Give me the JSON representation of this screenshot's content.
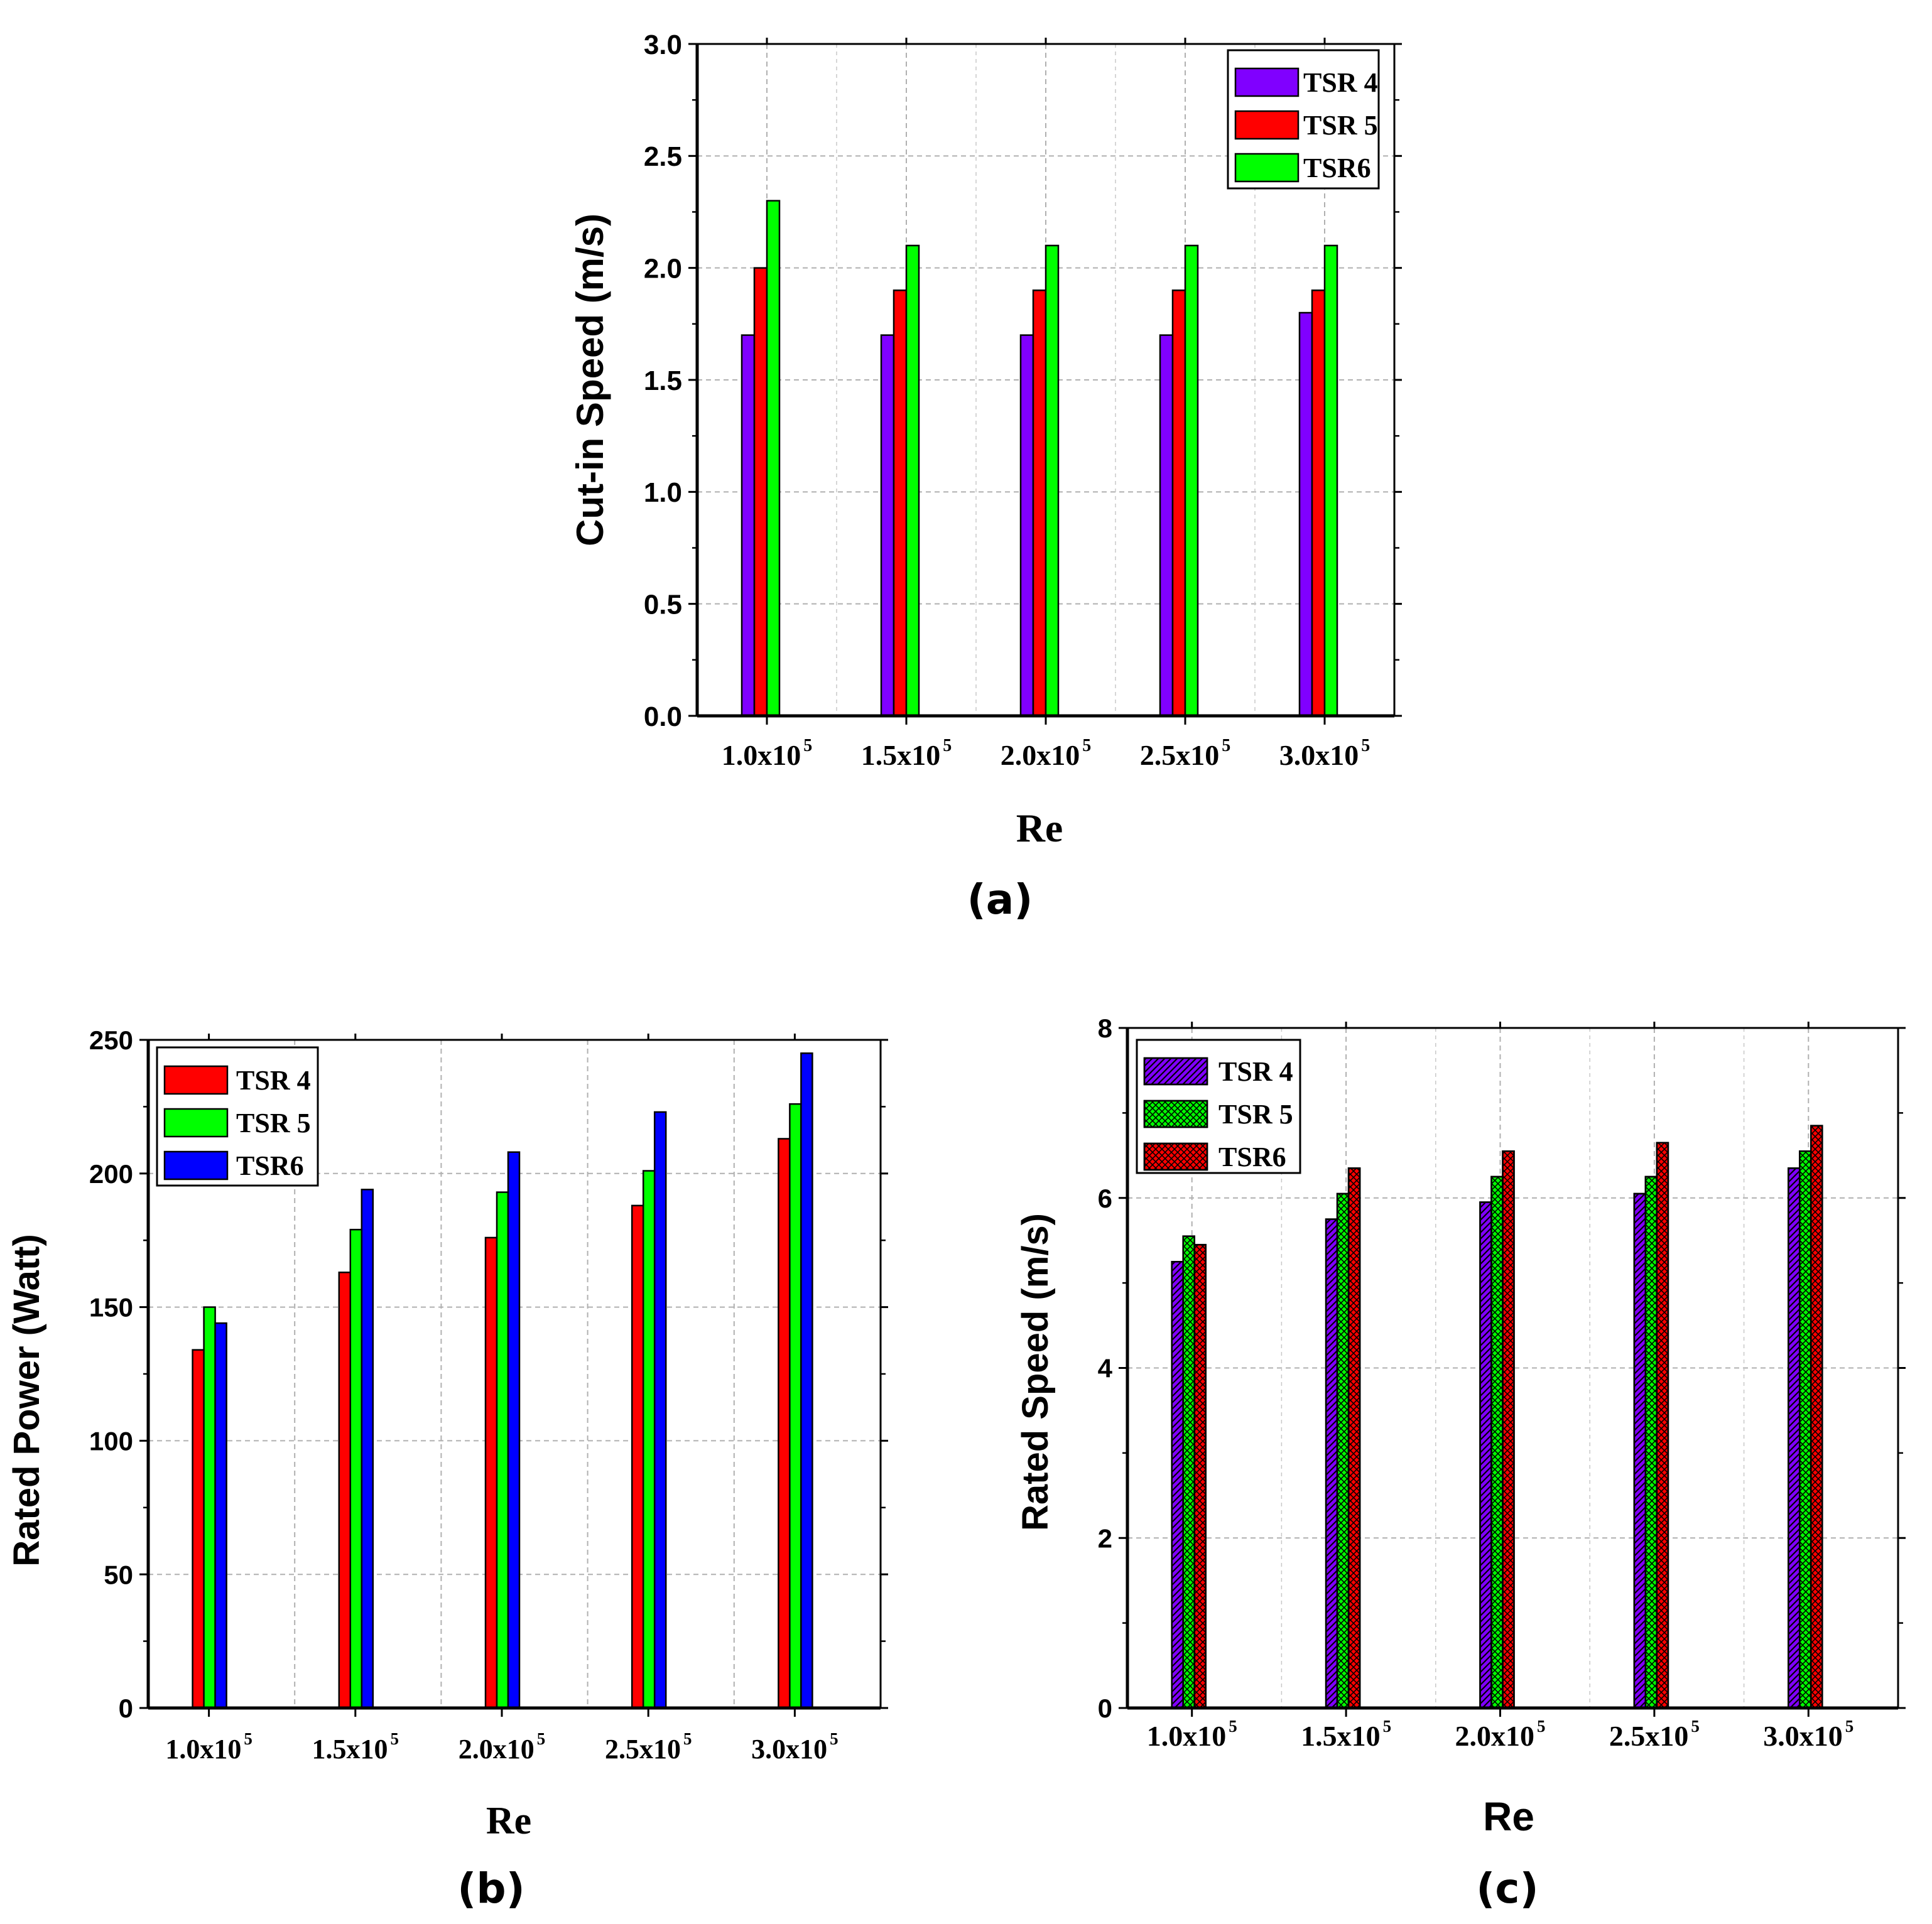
{
  "chart_data": [
    {
      "id": "a",
      "type": "bar",
      "panel_label": "(a)",
      "xlabel": "Re",
      "ylabel": "Cut-in Speed (m/s)",
      "categories": [
        {
          "base": "1.0x10",
          "exp": "5"
        },
        {
          "base": "1.5x10",
          "exp": "5"
        },
        {
          "base": "2.0x10",
          "exp": "5"
        },
        {
          "base": "2.5x10",
          "exp": "5"
        },
        {
          "base": "3.0x10",
          "exp": "5"
        }
      ],
      "ylim": [
        0,
        3.0
      ],
      "yticks": [
        "0.0",
        "0.5",
        "1.0",
        "1.5",
        "2.0",
        "2.5",
        "3.0"
      ],
      "grid": true,
      "legend_position": "top-right",
      "series": [
        {
          "name": "TSR 4",
          "color": "#8000ff",
          "pattern": "solid",
          "values": [
            1.7,
            1.7,
            1.7,
            1.7,
            1.8
          ]
        },
        {
          "name": "TSR 5",
          "color": "#ff0000",
          "pattern": "solid",
          "values": [
            2.0,
            1.9,
            1.9,
            1.9,
            1.9
          ]
        },
        {
          "name": "TSR6",
          "color": "#00ff00",
          "pattern": "solid",
          "values": [
            2.3,
            2.1,
            2.1,
            2.1,
            2.1
          ]
        }
      ]
    },
    {
      "id": "b",
      "type": "bar",
      "panel_label": "(b)",
      "xlabel": "Re",
      "ylabel": "Rated Power (Watt)",
      "categories": [
        {
          "base": "1.0x10",
          "exp": "5"
        },
        {
          "base": "1.5x10",
          "exp": "5"
        },
        {
          "base": "2.0x10",
          "exp": "5"
        },
        {
          "base": "2.5x10",
          "exp": "5"
        },
        {
          "base": "3.0x10",
          "exp": "5"
        }
      ],
      "ylim": [
        0,
        250
      ],
      "yticks": [
        "0",
        "50",
        "100",
        "150",
        "200",
        "250"
      ],
      "grid": true,
      "legend_position": "top-left",
      "series": [
        {
          "name": "TSR 4",
          "color": "#ff0000",
          "pattern": "solid",
          "values": [
            134,
            163,
            176,
            188,
            213
          ]
        },
        {
          "name": "TSR 5",
          "color": "#00ff00",
          "pattern": "solid",
          "values": [
            150,
            179,
            193,
            201,
            226
          ]
        },
        {
          "name": "TSR6",
          "color": "#0000ff",
          "pattern": "solid",
          "values": [
            144,
            194,
            208,
            223,
            245
          ]
        }
      ]
    },
    {
      "id": "c",
      "type": "bar",
      "panel_label": "(c)",
      "xlabel": "Re",
      "ylabel": "Rated Speed (m/s)",
      "categories": [
        {
          "base": "1.0x10",
          "exp": "5"
        },
        {
          "base": "1.5x10",
          "exp": "5"
        },
        {
          "base": "2.0x10",
          "exp": "5"
        },
        {
          "base": "2.5x10",
          "exp": "5"
        },
        {
          "base": "3.0x10",
          "exp": "5"
        }
      ],
      "ylim": [
        0,
        8
      ],
      "yticks": [
        "0",
        "2",
        "4",
        "6",
        "8"
      ],
      "grid": true,
      "legend_position": "top-left",
      "series": [
        {
          "name": "TSR 4",
          "color": "#8000ff",
          "pattern": "hatch",
          "values": [
            5.25,
            5.75,
            5.95,
            6.05,
            6.35
          ]
        },
        {
          "name": "TSR 5",
          "color": "#00ff00",
          "pattern": "cross",
          "values": [
            5.55,
            6.05,
            6.25,
            6.25,
            6.55
          ]
        },
        {
          "name": "TSR6",
          "color": "#ff0000",
          "pattern": "cross",
          "values": [
            5.45,
            6.35,
            6.55,
            6.65,
            6.85
          ]
        }
      ]
    }
  ]
}
